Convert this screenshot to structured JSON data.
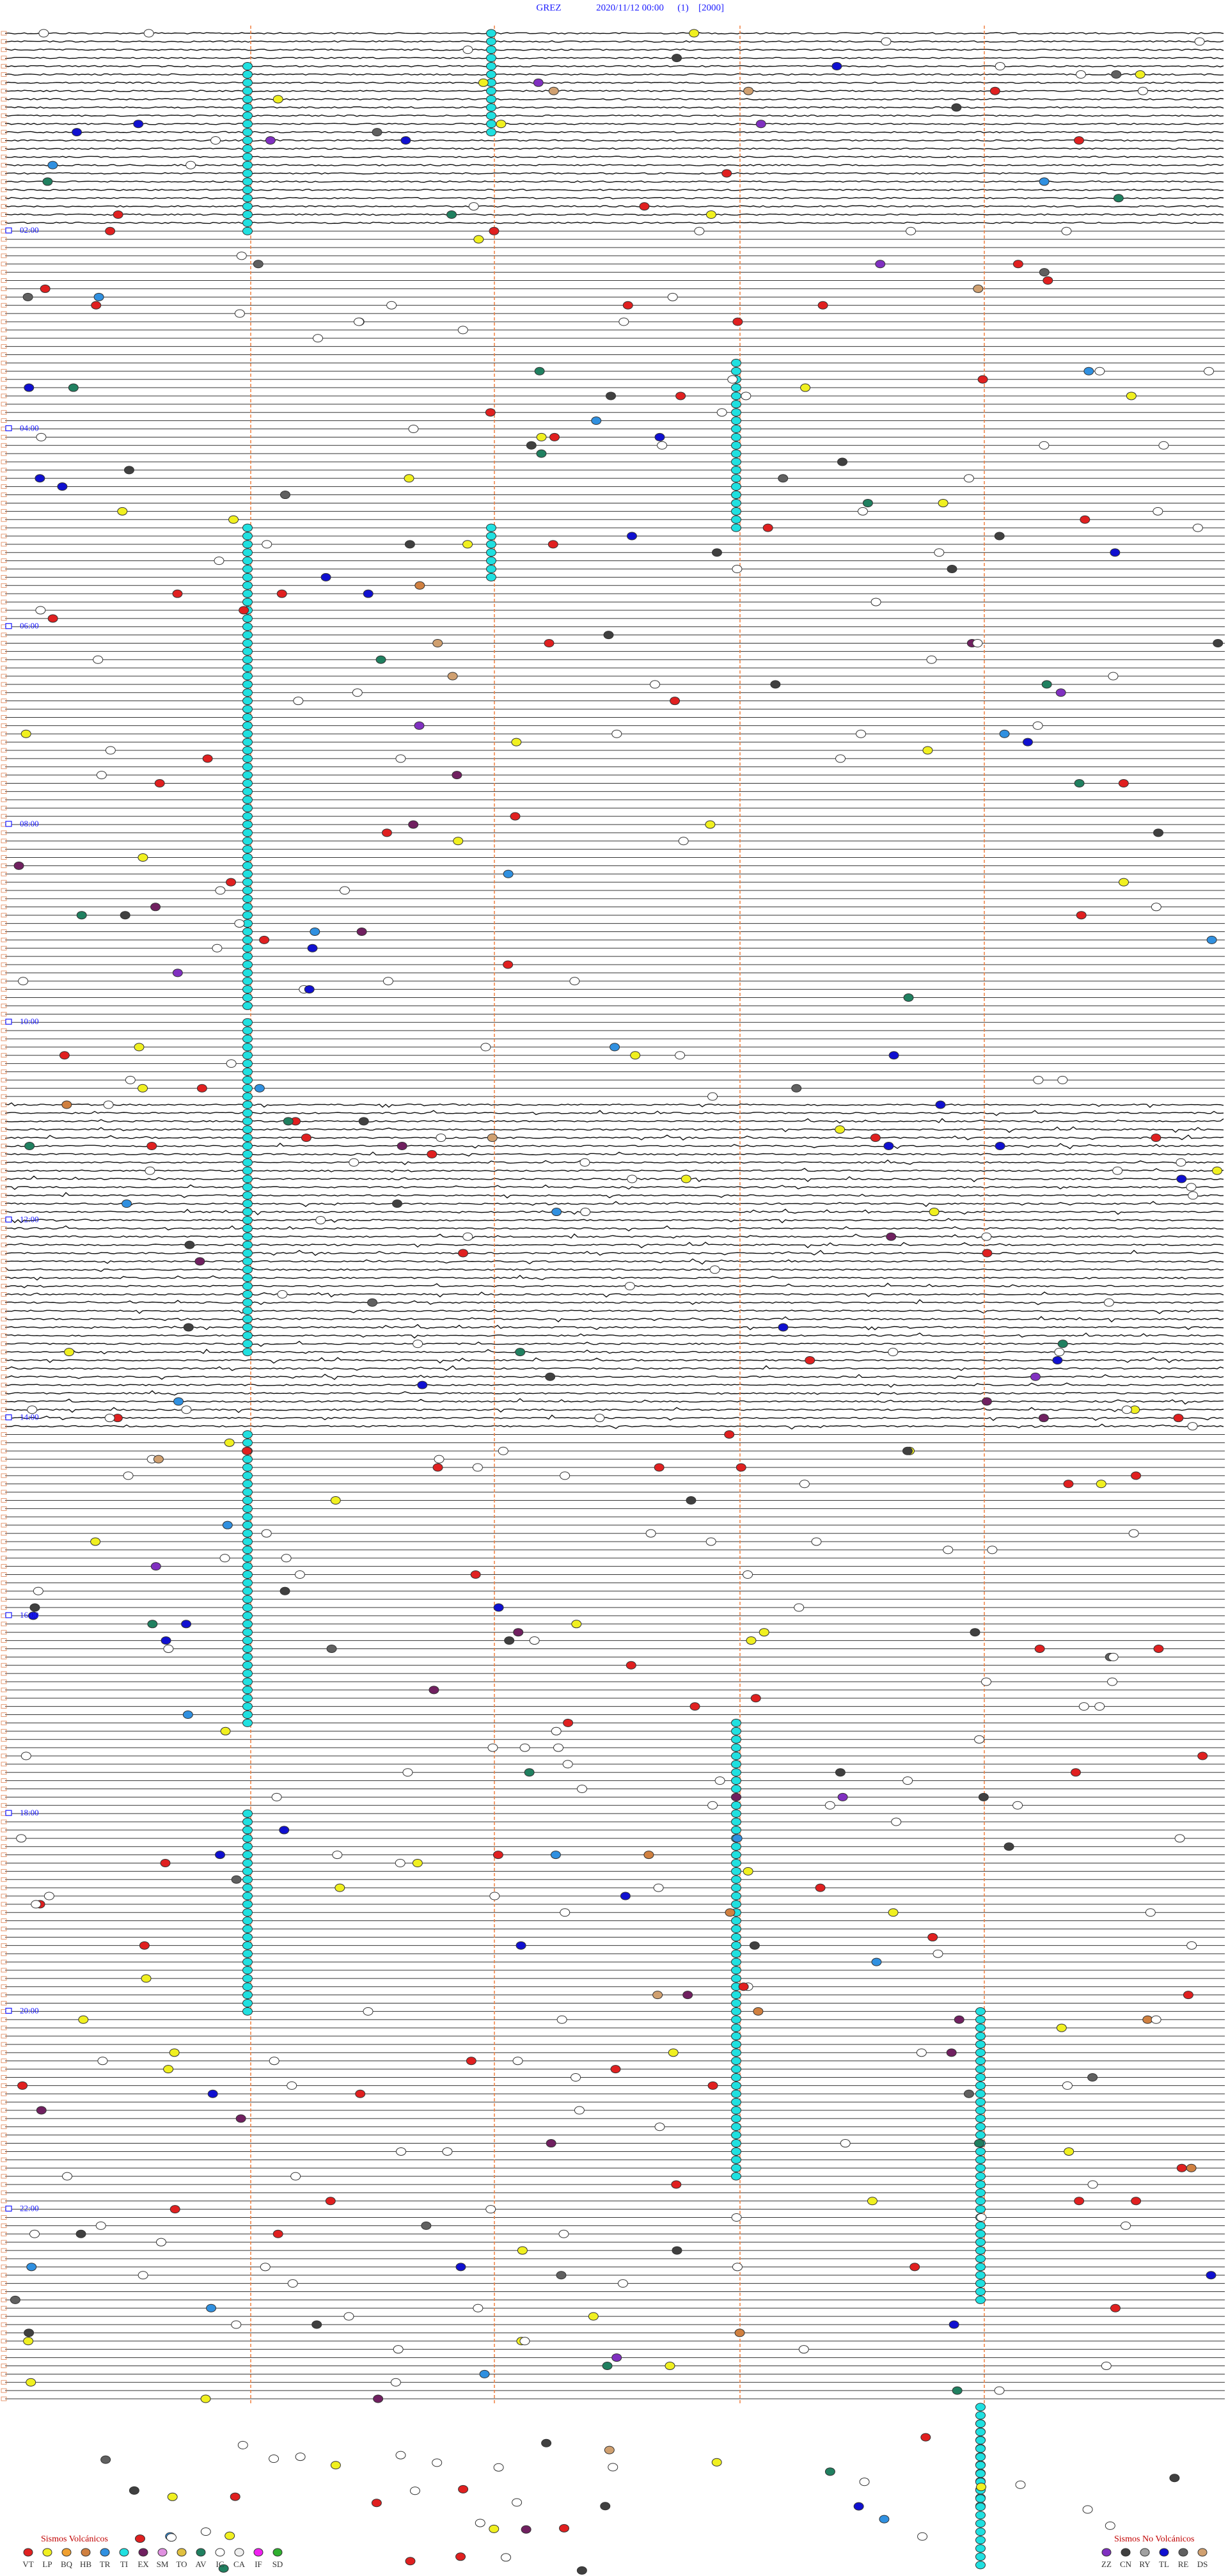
{
  "header": {
    "station": "GREZ",
    "datetime": "2020/11/12 00:00",
    "code": "(1)",
    "scale": "[2000]"
  },
  "time_labels": [
    "02:00",
    "04:00",
    "06:00",
    "08:00",
    "10:00",
    "12:00",
    "14:00",
    "16:00",
    "18:00",
    "20:00",
    "22:00"
  ],
  "legend": {
    "volcanic": {
      "title": "Sismos Volcánicos",
      "items": [
        {
          "label": "VT",
          "color": "#e02020"
        },
        {
          "label": "LP",
          "color": "#f0f020"
        },
        {
          "label": "BQ",
          "color": "#f0a030"
        },
        {
          "label": "HB",
          "color": "#d08040"
        },
        {
          "label": "TR",
          "color": "#3090e0"
        },
        {
          "label": "TI",
          "color": "#20e0e0"
        },
        {
          "label": "EX",
          "color": "#702060"
        },
        {
          "label": "SM",
          "color": "#e090e0"
        },
        {
          "label": "TO",
          "color": "#e0c040"
        },
        {
          "label": "AV",
          "color": "#208060"
        },
        {
          "label": "IC",
          "color": "#ffffff"
        },
        {
          "label": "CA",
          "color": "#f0f0f0"
        },
        {
          "label": "IF",
          "color": "#f020f0"
        },
        {
          "label": "SD",
          "color": "#30b030"
        }
      ]
    },
    "non_volcanic": {
      "title": "Sismos No Volcánicos",
      "items": [
        {
          "label": "ZZ",
          "color": "#8030c0"
        },
        {
          "label": "CN",
          "color": "#404040"
        },
        {
          "label": "RY",
          "color": "#a0a0a0"
        },
        {
          "label": "TL",
          "color": "#1010d0"
        },
        {
          "label": "RE",
          "color": "#606060"
        },
        {
          "label": "DS",
          "color": "#d0a070"
        }
      ]
    }
  }
}
